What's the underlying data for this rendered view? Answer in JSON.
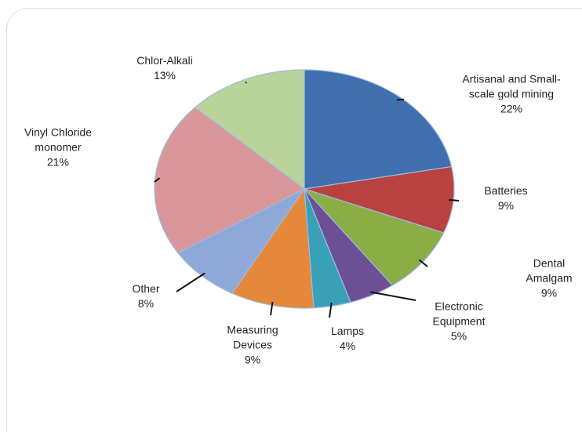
{
  "chart_data": {
    "type": "pie",
    "categories": [
      "Artisanal and Small-scale gold mining",
      "Batteries",
      "Dental Amalgam",
      "Electronic Equipment",
      "Lamps",
      "Measuring Devices",
      "Other",
      "Vinyl Chloride monomer",
      "Chlor-Alkali"
    ],
    "values": [
      22,
      9,
      9,
      5,
      4,
      9,
      8,
      21,
      13
    ],
    "value_labels": [
      "22%",
      "9%",
      "9%",
      "5%",
      "4%",
      "9%",
      "8%",
      "21%",
      "13%"
    ],
    "colors": [
      "#3f6faf",
      "#b94140",
      "#8aae45",
      "#6c4f95",
      "#3aa0b8",
      "#e6883a",
      "#8ea8d8",
      "#d9979a",
      "#b8d49a"
    ]
  }
}
